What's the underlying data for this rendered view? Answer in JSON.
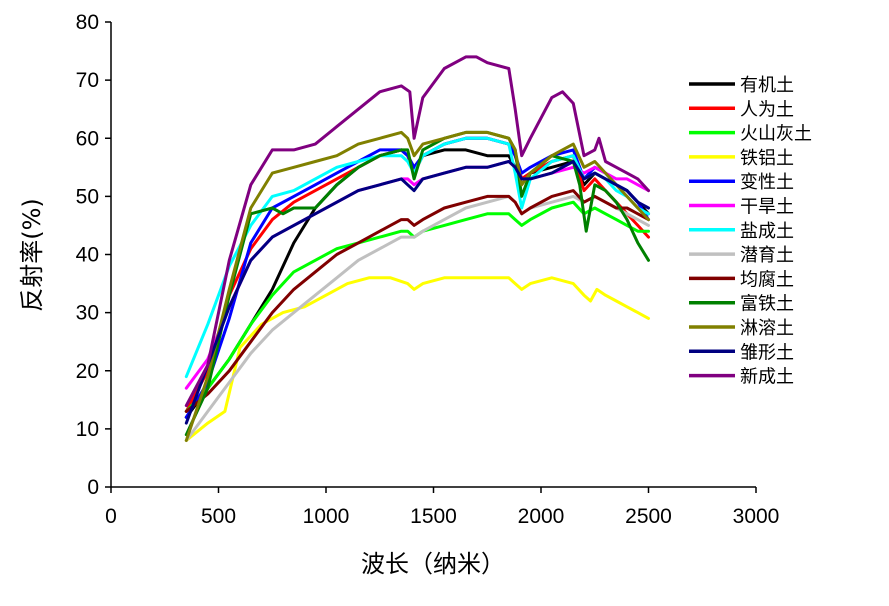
{
  "chart_data": {
    "type": "line",
    "title": "",
    "xlabel": "波长（纳米）",
    "ylabel": "反射率(%)",
    "xlim": [
      0,
      3000
    ],
    "ylim": [
      0,
      80
    ],
    "xticks": [
      0,
      500,
      1000,
      1500,
      2000,
      2500,
      3000
    ],
    "yticks": [
      0,
      10,
      20,
      30,
      40,
      50,
      60,
      70,
      80
    ],
    "grid": false,
    "legend": "right",
    "series": [
      {
        "name": "有机土",
        "color": "#000000",
        "x": [
          350,
          450,
          550,
          650,
          750,
          850,
          950,
          1050,
          1150,
          1250,
          1350,
          1380,
          1410,
          1450,
          1550,
          1650,
          1750,
          1850,
          1880,
          1910,
          1950,
          2050,
          2150,
          2200,
          2250,
          2300,
          2350,
          2400,
          2450,
          2500
        ],
        "y": [
          12,
          17,
          22,
          28,
          34,
          42,
          48,
          52,
          55,
          57,
          58,
          57,
          55,
          57,
          58,
          58,
          57,
          57,
          55,
          53,
          54,
          55,
          56,
          52,
          54,
          53,
          52,
          51,
          49,
          47
        ]
      },
      {
        "name": "人为土",
        "color": "#ff0000",
        "x": [
          350,
          450,
          550,
          650,
          750,
          850,
          950,
          1050,
          1150,
          1250,
          1350,
          1380,
          1410,
          1450,
          1550,
          1650,
          1750,
          1850,
          1880,
          1910,
          1950,
          2050,
          2150,
          2200,
          2250,
          2300,
          2350,
          2400,
          2450,
          2500
        ],
        "y": [
          13,
          20,
          33,
          41,
          46,
          49,
          51,
          53,
          55,
          57,
          58,
          57,
          54,
          57,
          59,
          60,
          60,
          59,
          57,
          53,
          54,
          56,
          57,
          51,
          53,
          51,
          49,
          47,
          45,
          43
        ]
      },
      {
        "name": "火山灰土",
        "color": "#00ff00",
        "x": [
          350,
          450,
          550,
          650,
          750,
          850,
          950,
          1050,
          1150,
          1250,
          1350,
          1380,
          1410,
          1450,
          1550,
          1650,
          1750,
          1850,
          1880,
          1910,
          1950,
          2050,
          2150,
          2200,
          2250,
          2300,
          2350,
          2400,
          2450,
          2500
        ],
        "y": [
          13,
          17,
          22,
          28,
          33,
          37,
          39,
          41,
          42,
          43,
          44,
          44,
          43,
          44,
          45,
          46,
          47,
          47,
          46,
          45,
          46,
          48,
          49,
          47,
          48,
          47,
          46,
          45,
          44,
          44
        ]
      },
      {
        "name": "铁铝土",
        "color": "#ffff00",
        "x": [
          350,
          450,
          530,
          600,
          700,
          800,
          900,
          1000,
          1100,
          1200,
          1300,
          1380,
          1410,
          1450,
          1550,
          1650,
          1750,
          1850,
          1880,
          1910,
          1950,
          2050,
          2150,
          2200,
          2230,
          2260,
          2300,
          2350,
          2400,
          2450,
          2500
        ],
        "y": [
          8,
          11,
          13,
          24,
          28,
          30,
          31,
          33,
          35,
          36,
          36,
          35,
          34,
          35,
          36,
          36,
          36,
          36,
          35,
          34,
          35,
          36,
          35,
          33,
          32,
          34,
          33,
          32,
          31,
          30,
          29
        ]
      },
      {
        "name": "变性土",
        "color": "#0000ff",
        "x": [
          350,
          450,
          550,
          650,
          750,
          850,
          950,
          1050,
          1150,
          1250,
          1350,
          1380,
          1410,
          1450,
          1550,
          1650,
          1750,
          1850,
          1880,
          1910,
          1950,
          2050,
          2150,
          2200,
          2250,
          2300,
          2350,
          2400,
          2450,
          2500
        ],
        "y": [
          12,
          18,
          29,
          42,
          48,
          50,
          52,
          54,
          56,
          58,
          58,
          57,
          55,
          57,
          59,
          60,
          60,
          59,
          57,
          54,
          55,
          57,
          58,
          53,
          55,
          54,
          52,
          51,
          49,
          46
        ]
      },
      {
        "name": "干旱土",
        "color": "#ff00ff",
        "x": [
          350,
          450,
          550,
          650,
          750,
          850,
          950,
          1050,
          1150,
          1250,
          1350,
          1380,
          1410,
          1450,
          1550,
          1650,
          1750,
          1850,
          1880,
          1910,
          1950,
          2050,
          2150,
          2200,
          2250,
          2300,
          2350,
          2400,
          2450,
          2500
        ],
        "y": [
          17,
          22,
          31,
          39,
          43,
          45,
          47,
          49,
          51,
          52,
          53,
          53,
          52,
          53,
          54,
          55,
          55,
          56,
          55,
          53,
          53,
          54,
          55,
          54,
          55,
          54,
          53,
          53,
          52,
          51
        ]
      },
      {
        "name": "盐成土",
        "color": "#00ffff",
        "x": [
          350,
          450,
          550,
          650,
          750,
          850,
          950,
          1050,
          1150,
          1250,
          1350,
          1380,
          1410,
          1450,
          1550,
          1650,
          1750,
          1850,
          1880,
          1910,
          1950,
          2050,
          2150,
          2200,
          2250,
          2300,
          2350,
          2400,
          2450,
          2500
        ],
        "y": [
          19,
          28,
          38,
          45,
          50,
          51,
          53,
          55,
          56,
          57,
          57,
          56,
          54,
          57,
          59,
          60,
          60,
          59,
          54,
          48,
          53,
          56,
          57,
          53,
          54,
          53,
          51,
          50,
          48,
          47
        ]
      },
      {
        "name": "潜育土",
        "color": "#c0c0c0",
        "x": [
          350,
          450,
          550,
          650,
          750,
          850,
          950,
          1050,
          1150,
          1250,
          1350,
          1380,
          1410,
          1450,
          1550,
          1650,
          1750,
          1850,
          1880,
          1910,
          1950,
          2050,
          2150,
          2200,
          2250,
          2300,
          2350,
          2400,
          2450,
          2500
        ],
        "y": [
          8,
          13,
          18,
          23,
          27,
          30,
          33,
          36,
          39,
          41,
          43,
          43,
          43,
          44,
          46,
          48,
          49,
          50,
          49,
          47,
          48,
          49,
          50,
          49,
          50,
          49,
          48,
          47,
          46,
          45
        ]
      },
      {
        "name": "均腐土",
        "color": "#800000",
        "x": [
          350,
          450,
          550,
          650,
          750,
          850,
          950,
          1050,
          1150,
          1250,
          1350,
          1380,
          1410,
          1450,
          1550,
          1650,
          1750,
          1850,
          1880,
          1910,
          1950,
          2050,
          2150,
          2200,
          2250,
          2300,
          2350,
          2400,
          2450,
          2500
        ],
        "y": [
          13,
          16,
          20,
          25,
          30,
          34,
          37,
          40,
          42,
          44,
          46,
          46,
          45,
          46,
          48,
          49,
          50,
          50,
          49,
          47,
          48,
          50,
          51,
          49,
          50,
          49,
          48,
          48,
          47,
          46
        ]
      },
      {
        "name": "富铁土",
        "color": "#008000",
        "x": [
          350,
          450,
          550,
          650,
          750,
          800,
          850,
          950,
          1050,
          1150,
          1250,
          1350,
          1380,
          1410,
          1450,
          1550,
          1650,
          1750,
          1850,
          1880,
          1910,
          1950,
          2050,
          2150,
          2180,
          2210,
          2250,
          2300,
          2350,
          2400,
          2450,
          2500
        ],
        "y": [
          9,
          17,
          33,
          47,
          48,
          47,
          48,
          48,
          52,
          55,
          57,
          58,
          58,
          53,
          58,
          60,
          61,
          61,
          60,
          58,
          50,
          54,
          57,
          56,
          52,
          44,
          52,
          51,
          49,
          46,
          42,
          39
        ]
      },
      {
        "name": "淋溶土",
        "color": "#808000",
        "x": [
          350,
          450,
          550,
          650,
          750,
          850,
          950,
          1050,
          1150,
          1250,
          1350,
          1380,
          1410,
          1450,
          1550,
          1650,
          1750,
          1850,
          1880,
          1910,
          1950,
          2050,
          2150,
          2200,
          2250,
          2300,
          2350,
          2400,
          2450,
          2500
        ],
        "y": [
          8,
          19,
          34,
          48,
          54,
          55,
          56,
          57,
          59,
          60,
          61,
          60,
          57,
          59,
          60,
          61,
          61,
          60,
          58,
          52,
          54,
          57,
          59,
          55,
          56,
          54,
          52,
          50,
          48,
          46
        ]
      },
      {
        "name": "雏形土",
        "color": "#000080",
        "x": [
          350,
          450,
          550,
          650,
          750,
          850,
          950,
          1050,
          1150,
          1250,
          1350,
          1380,
          1410,
          1450,
          1550,
          1650,
          1750,
          1850,
          1880,
          1910,
          1950,
          2050,
          2150,
          2200,
          2250,
          2300,
          2350,
          2400,
          2450,
          2500
        ],
        "y": [
          11,
          21,
          31,
          39,
          43,
          45,
          47,
          49,
          51,
          52,
          53,
          52,
          51,
          53,
          54,
          55,
          55,
          56,
          55,
          53,
          53,
          54,
          56,
          53,
          54,
          53,
          52,
          51,
          49,
          48
        ]
      },
      {
        "name": "新成土",
        "color": "#800080",
        "x": [
          350,
          450,
          550,
          650,
          750,
          800,
          850,
          950,
          1050,
          1150,
          1250,
          1350,
          1390,
          1410,
          1450,
          1550,
          1650,
          1700,
          1750,
          1850,
          1880,
          1910,
          1950,
          2050,
          2100,
          2150,
          2200,
          2250,
          2270,
          2300,
          2350,
          2400,
          2450,
          2500
        ],
        "y": [
          14,
          21,
          39,
          52,
          58,
          58,
          58,
          59,
          62,
          65,
          68,
          69,
          68,
          60,
          67,
          72,
          74,
          74,
          73,
          72,
          65,
          57,
          60,
          67,
          68,
          66,
          57,
          58,
          60,
          56,
          55,
          54,
          53,
          51
        ]
      }
    ]
  }
}
